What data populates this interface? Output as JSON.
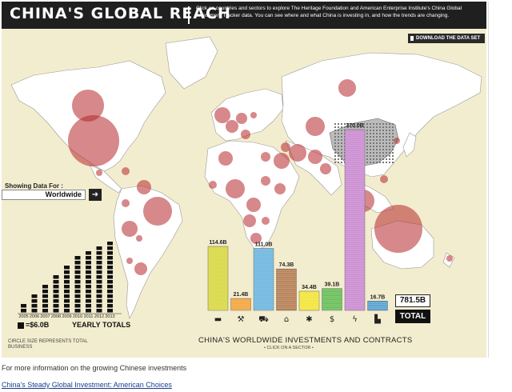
{
  "header": {
    "title": "CHINA'S GLOBAL REACH",
    "description": "Click on countries and sectors to explore The Heritage Foundation and American Enterprise Institute's China Global Investment Tracker data. You can see where and what China is investing in, and how the trends are changing."
  },
  "download_label": "DOWNLOAD THE DATA SET",
  "selector": {
    "label": "Showing Data For :",
    "value": "Worldwide",
    "button_glyph": "➜"
  },
  "yearly": {
    "years": [
      "2005",
      "2006",
      "2007",
      "2008",
      "2009",
      "2010",
      "2011",
      "2012",
      "2013"
    ],
    "stacks": [
      2,
      4,
      6,
      8,
      10,
      12,
      13,
      14,
      15
    ],
    "legend_value": "=$6.0B",
    "label": "YEARLY TOTALS"
  },
  "circle_note": "CIRCLE SIZE REPRESENTS TOTAL BUSINESS",
  "sectors": {
    "title": "CHINA'S WORLDWIDE INVESTMENTS AND CONTRACTS",
    "subtitle": "• CLICK ON A SECTOR •",
    "items": [
      {
        "value": 114.6,
        "label": "114.6B",
        "icon": "car-icon",
        "glyph": "▬",
        "color": "#d9d94a"
      },
      {
        "value": 21.4,
        "label": "21.4B",
        "icon": "pickaxe-icon",
        "glyph": "⚒",
        "color": "#f2a640"
      },
      {
        "value": 111.0,
        "label": "111.0B",
        "icon": "truck-icon",
        "glyph": "⛟",
        "color": "#6fb8e0"
      },
      {
        "value": 74.3,
        "label": "74.3B",
        "icon": "house-icon",
        "glyph": "⌂",
        "color": "#b9835a"
      },
      {
        "value": 34.4,
        "label": "34.4B",
        "icon": "wheat-icon",
        "glyph": "✱",
        "color": "#f3e53c"
      },
      {
        "value": 39.1,
        "label": "39.1B",
        "icon": "dollar-icon",
        "glyph": "$",
        "color": "#6abf5a"
      },
      {
        "value": 370.0,
        "label": "370.0B",
        "icon": "lightning-icon",
        "glyph": "ϟ",
        "color": "#cc8fd2"
      },
      {
        "value": 16.7,
        "label": "16.7B",
        "icon": "factory-icon",
        "glyph": "▙",
        "color": "#5aa3cf"
      }
    ]
  },
  "total": {
    "value": "781.5B",
    "label": "TOTAL"
  },
  "footer": {
    "text": "For more information on the growing Chinese investments",
    "link": "China's Steady Global Investment: American Choices"
  },
  "colors": {
    "land": "#ffffff",
    "ocean": "#f3edcf",
    "circle": "#b5272a",
    "bars": "#111111"
  }
}
